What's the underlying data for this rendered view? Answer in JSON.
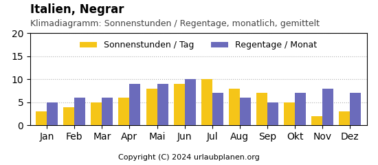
{
  "chart_data": {
    "type": "bar",
    "title": "Italien, Negrar",
    "subtitle": "Klimadiagramm: Sonnenstunden / Regentage, monatlich, gemittelt",
    "annotations": [
      "Copyright (C) 2024 urlaubplanen.org"
    ],
    "categories": [
      "Jan",
      "Feb",
      "Mar",
      "Apr",
      "Mai",
      "Jun",
      "Jul",
      "Aug",
      "Sep",
      "Okt",
      "Nov",
      "Dez"
    ],
    "series": [
      {
        "name": "Sonnenstunden / Tag",
        "color": "#F5C518",
        "values": [
          3,
          4,
          5,
          6,
          8,
          9,
          10,
          8,
          7,
          5,
          2,
          3
        ]
      },
      {
        "name": "Regentage / Monat",
        "color": "#6B6BBB",
        "values": [
          5,
          6,
          6,
          9,
          9,
          10,
          7,
          6,
          5,
          7,
          8,
          7
        ]
      }
    ],
    "ylim": [
      0,
      20
    ],
    "yticks": [
      0,
      5,
      10,
      15,
      20
    ],
    "grid": true,
    "legend": "upper center"
  }
}
